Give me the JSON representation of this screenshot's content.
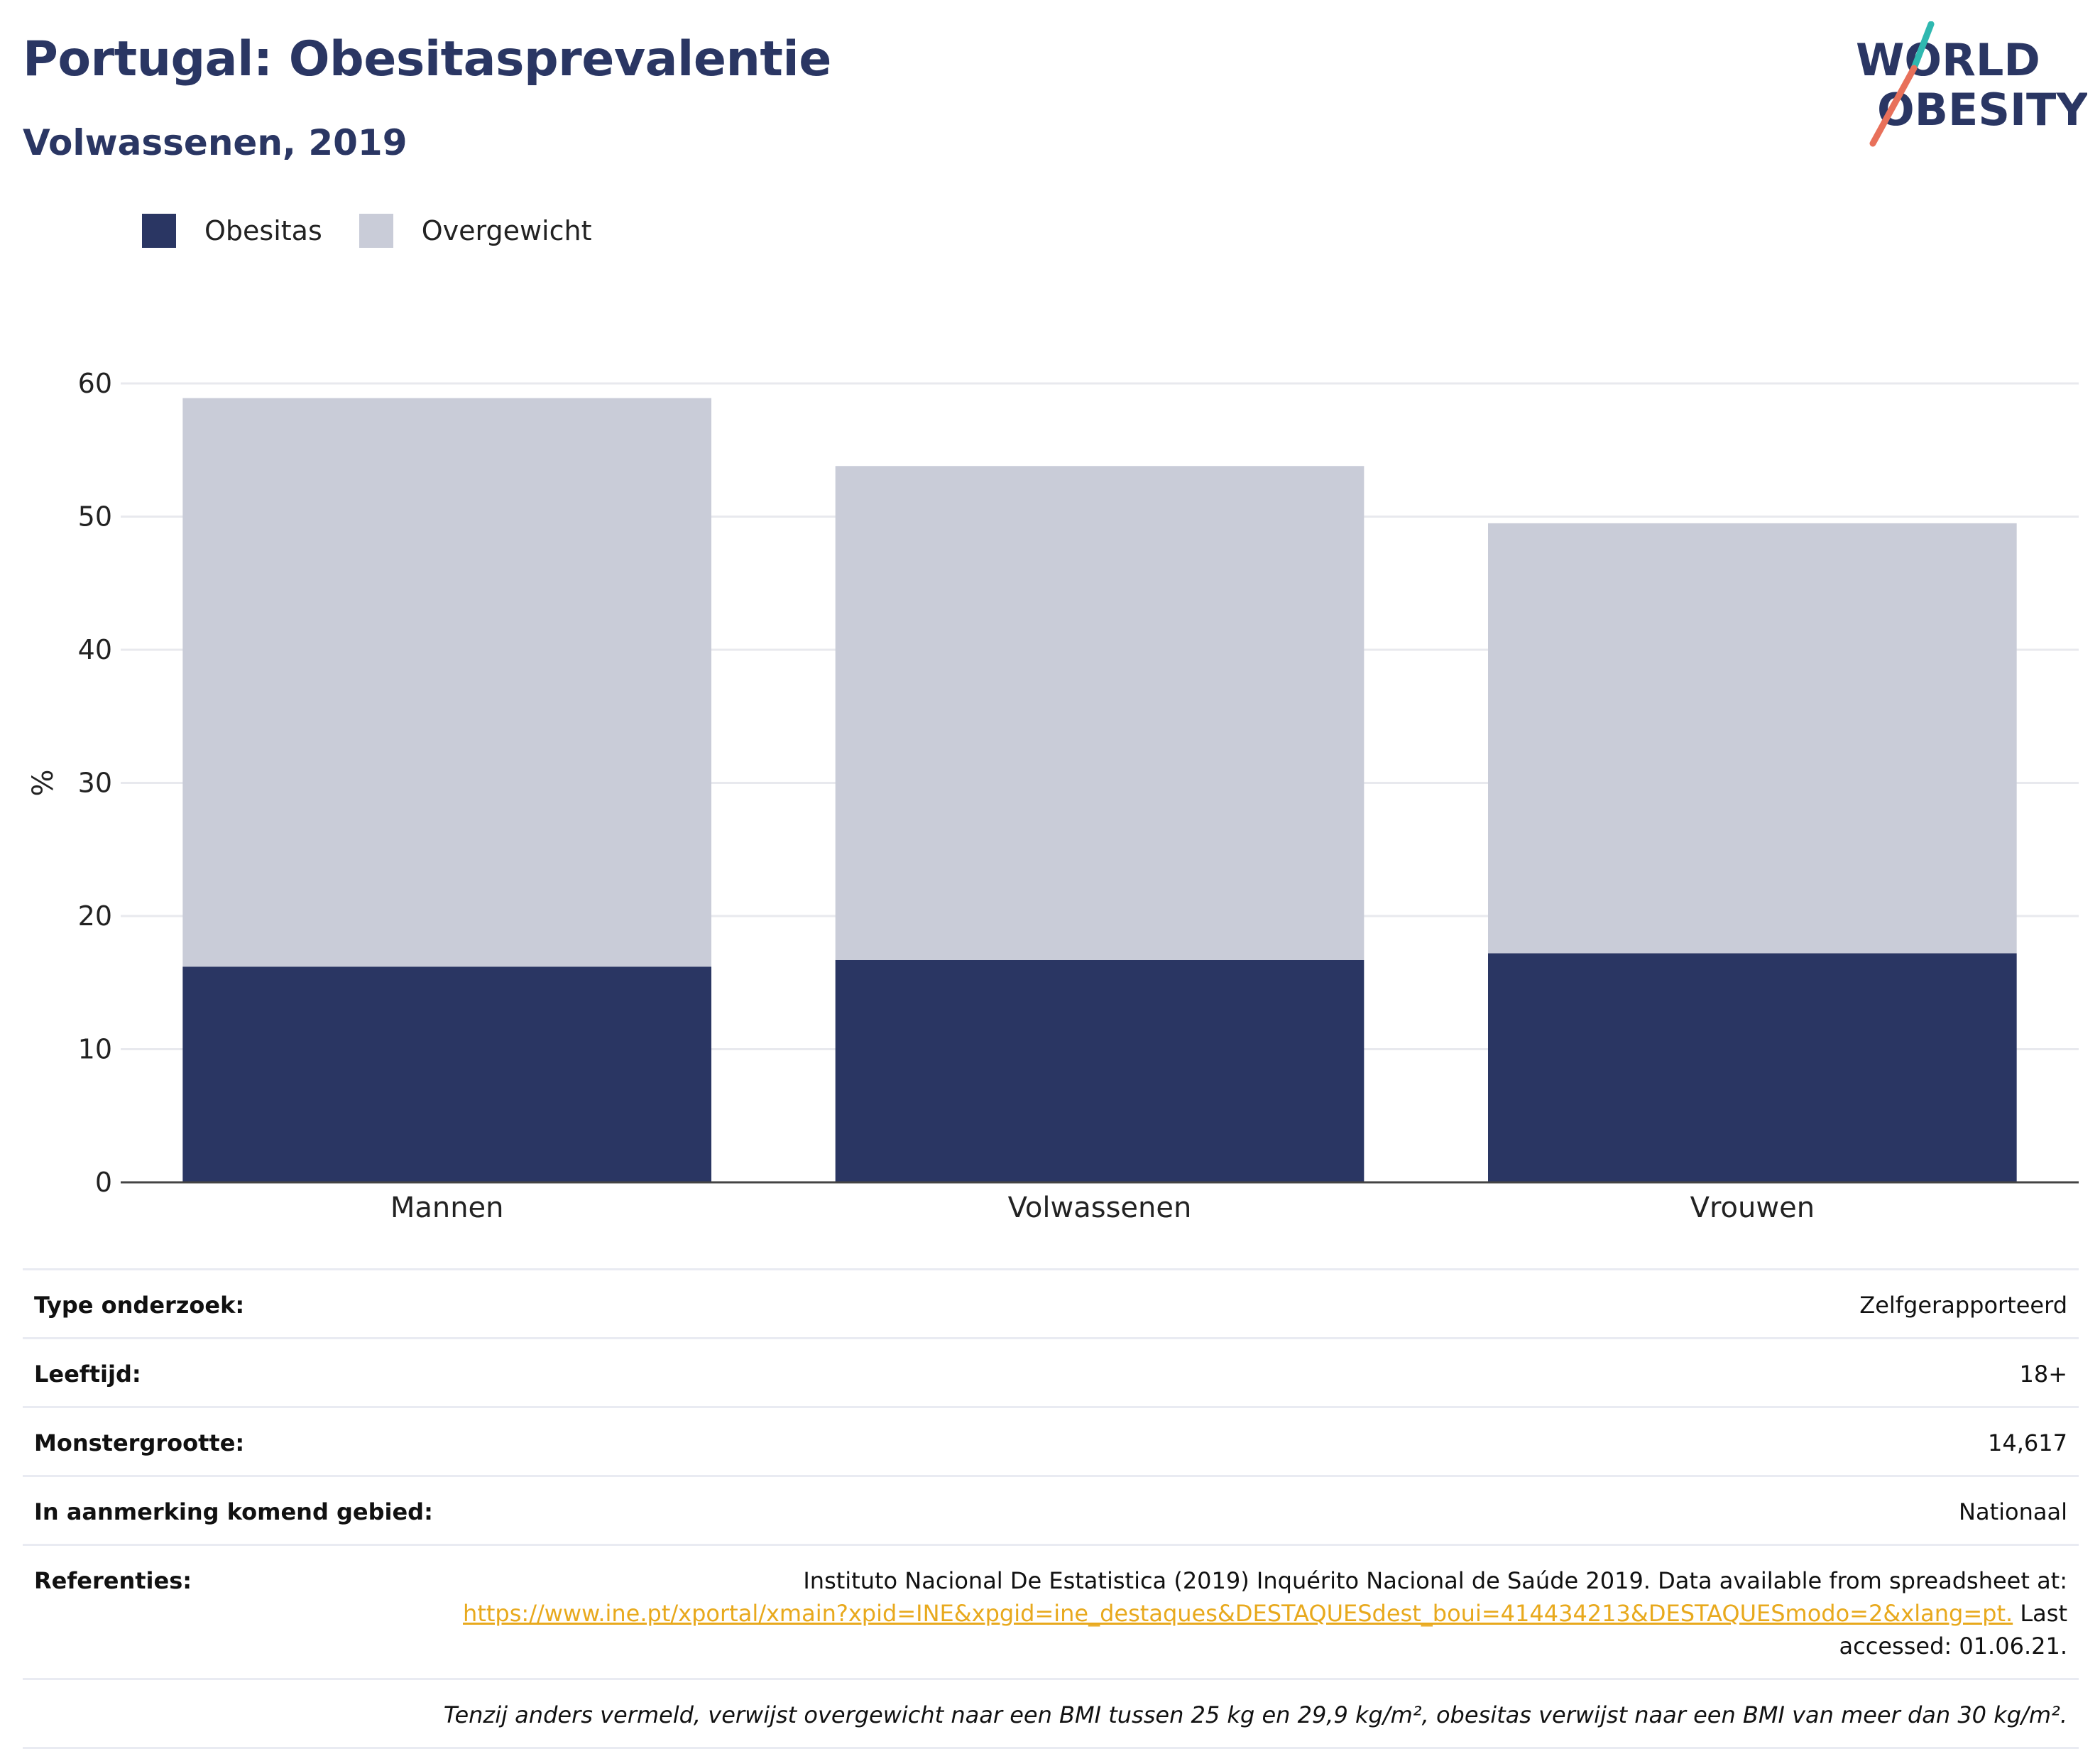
{
  "header": {
    "title": "Portugal: Obesitasprevalentie",
    "subtitle": "Volwassenen, 2019",
    "logo_line1": "WORLD",
    "logo_line2": "OBESITY"
  },
  "colors": {
    "obesity": "#2a3663",
    "overweight": "#c9ccd8",
    "brand_navy": "#2a3663",
    "logo_teal": "#2fb8b0",
    "logo_coral": "#e8705a",
    "link": "#e8a91d"
  },
  "chart_data": {
    "type": "bar",
    "stacked": true,
    "categories": [
      "Mannen",
      "Volwassenen",
      "Vrouwen"
    ],
    "series": [
      {
        "name": "Obesitas",
        "values": [
          16.2,
          16.7,
          17.2
        ],
        "color": "#2a3663"
      },
      {
        "name": "Overgewicht",
        "values": [
          42.7,
          37.1,
          32.3
        ],
        "color": "#c9ccd8"
      }
    ],
    "ylabel": "%",
    "ylim": [
      0,
      60
    ],
    "yticks": [
      "0",
      "10",
      "20",
      "30",
      "40",
      "50",
      "60"
    ],
    "grid": true,
    "legend": "top-left"
  },
  "info": {
    "survey_type_label": "Type onderzoek:",
    "survey_type_value": "Zelfgerapporteerd",
    "age_label": "Leeftijd:",
    "age_value": "18+",
    "sample_label": "Monstergrootte:",
    "sample_value": "14,617",
    "area_label": "In aanmerking komend gebied:",
    "area_value": "Nationaal",
    "ref_label": "Referenties:",
    "ref_text": "Instituto Nacional De Estatistica (2019) Inquérito Nacional de Saúde 2019. Data available from spreadsheet at:",
    "ref_link": "https://www.ine.pt/xportal/xmain?xpid=INE&xpgid=ine_destaques&DESTAQUESdest_boui=414434213&DESTAQUESmodo=2&xlang=pt.",
    "ref_accessed": " Last accessed: 01.06.21.",
    "note": "Tenzij anders vermeld, verwijst overgewicht naar een BMI tussen 25 kg en 29,9 kg/m², obesitas verwijst naar een BMI van meer dan 30 kg/m²."
  }
}
